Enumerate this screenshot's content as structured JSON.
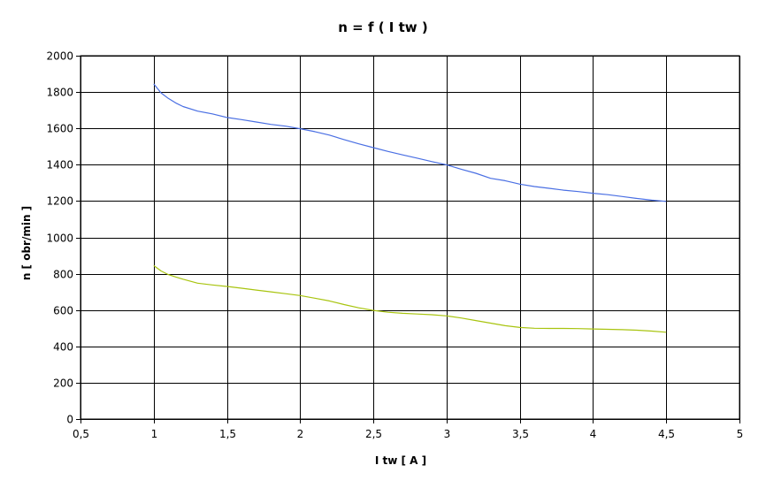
{
  "chart_data": {
    "type": "line",
    "title": "n = f ( I tw )",
    "xlabel": "I tw [ A ]",
    "ylabel": "n [ obr/min ]",
    "xlim": [
      0.5,
      5
    ],
    "ylim": [
      0,
      2000
    ],
    "x_ticks": [
      0.5,
      1,
      1.5,
      2,
      2.5,
      3,
      3.5,
      4,
      4.5,
      5
    ],
    "x_tick_labels": [
      "0,5",
      "1",
      "1,5",
      "2",
      "2,5",
      "3",
      "3,5",
      "4",
      "4,5",
      "5"
    ],
    "y_ticks": [
      0,
      200,
      400,
      600,
      800,
      1000,
      1200,
      1400,
      1600,
      1800,
      2000
    ],
    "y_tick_labels": [
      "0",
      "200",
      "400",
      "600",
      "800",
      "1000",
      "1200",
      "1400",
      "1600",
      "1800",
      "2000"
    ],
    "grid": true,
    "legend": "none",
    "series": [
      {
        "color": "#4a6fe3",
        "x": [
          1.0,
          1.05,
          1.1,
          1.15,
          1.2,
          1.3,
          1.4,
          1.5,
          1.6,
          1.7,
          1.8,
          1.9,
          2.0,
          2.1,
          2.2,
          2.3,
          2.4,
          2.5,
          2.6,
          2.7,
          2.8,
          2.9,
          3.0,
          3.1,
          3.2,
          3.3,
          3.4,
          3.5,
          3.6,
          3.7,
          3.8,
          3.9,
          4.0,
          4.1,
          4.2,
          4.3,
          4.4,
          4.5
        ],
        "y": [
          1845,
          1795,
          1765,
          1740,
          1720,
          1695,
          1680,
          1660,
          1648,
          1635,
          1622,
          1612,
          1598,
          1582,
          1563,
          1538,
          1515,
          1494,
          1473,
          1454,
          1436,
          1417,
          1399,
          1375,
          1353,
          1325,
          1312,
          1293,
          1280,
          1270,
          1260,
          1252,
          1243,
          1235,
          1225,
          1214,
          1205,
          1198
        ]
      },
      {
        "color": "#a8c40f",
        "x": [
          1.0,
          1.05,
          1.1,
          1.15,
          1.2,
          1.3,
          1.4,
          1.5,
          1.6,
          1.7,
          1.8,
          1.9,
          2.0,
          2.1,
          2.2,
          2.3,
          2.4,
          2.5,
          2.6,
          2.7,
          2.8,
          2.9,
          3.0,
          3.1,
          3.2,
          3.3,
          3.4,
          3.5,
          3.6,
          3.7,
          3.8,
          3.9,
          4.0,
          4.1,
          4.2,
          4.3,
          4.4,
          4.5
        ],
        "y": [
          845,
          815,
          795,
          782,
          770,
          748,
          738,
          730,
          720,
          710,
          700,
          690,
          680,
          665,
          650,
          630,
          612,
          598,
          588,
          582,
          578,
          574,
          568,
          556,
          542,
          528,
          514,
          504,
          500,
          499,
          499,
          498,
          496,
          494,
          492,
          489,
          484,
          478
        ]
      }
    ]
  }
}
